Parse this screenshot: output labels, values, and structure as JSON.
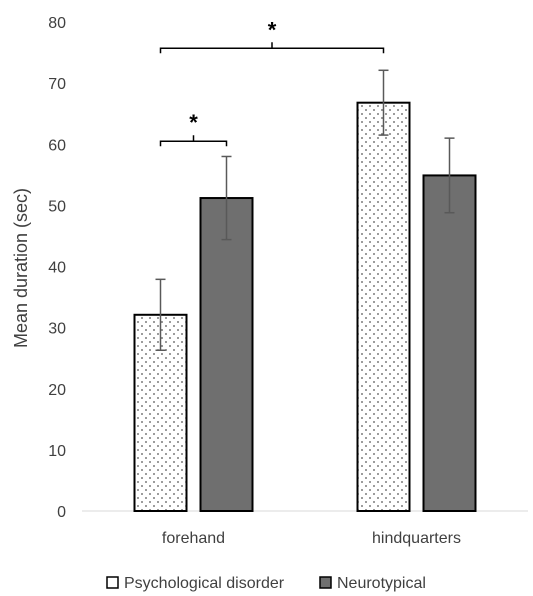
{
  "chart_data": {
    "type": "bar",
    "categories": [
      "forehand",
      "hindquarters"
    ],
    "series": [
      {
        "name": "Psychological disorder",
        "values": [
          32.1,
          66.8
        ],
        "error": [
          5.8,
          5.3
        ],
        "fill": "dotted",
        "color": "#ffffff"
      },
      {
        "name": "Neurotypical",
        "values": [
          51.2,
          54.9
        ],
        "error": [
          6.8,
          6.1
        ],
        "fill": "solid",
        "color": "#6f6f6f"
      }
    ],
    "ylabel": "Mean duration (sec)",
    "ylim": [
      0,
      80
    ],
    "yticks": [
      0,
      10,
      20,
      30,
      40,
      50,
      60,
      70,
      80
    ],
    "grid": false,
    "legend_position": "bottom",
    "significance": [
      {
        "label": "*",
        "from": {
          "category": 0,
          "series": 0
        },
        "to": {
          "category": 0,
          "series": 1
        },
        "y": 60.5
      },
      {
        "label": "*",
        "from": {
          "category": 0,
          "series": 0
        },
        "to": {
          "category": 1,
          "series": 0
        },
        "y": 75.7
      }
    ]
  }
}
